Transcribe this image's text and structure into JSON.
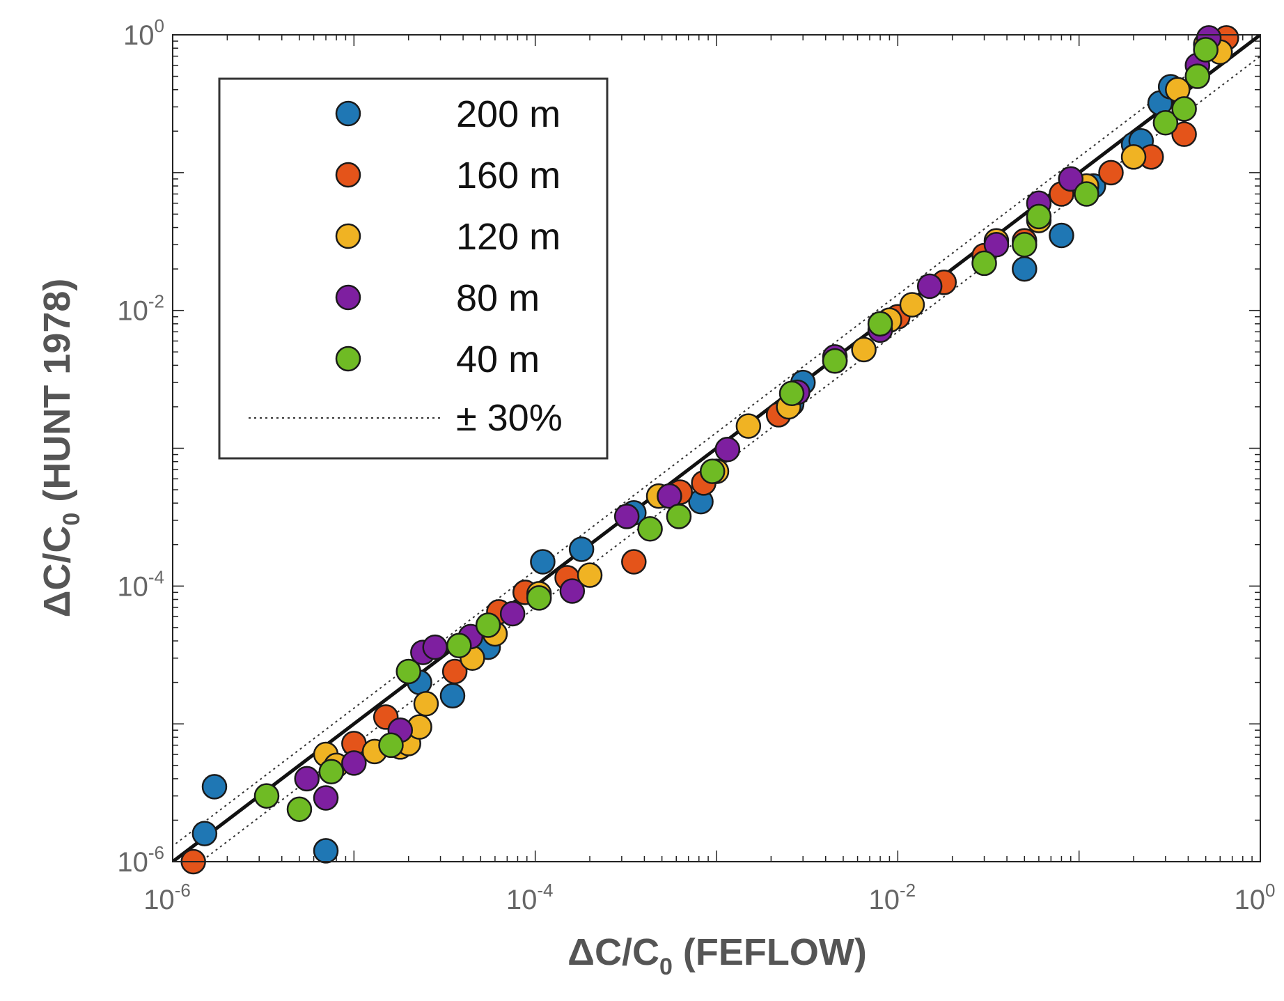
{
  "chart_data": {
    "type": "scatter",
    "x_scale": "log",
    "y_scale": "log",
    "xlim": [
      1e-06,
      1
    ],
    "ylim": [
      1e-06,
      1
    ],
    "xlabel": {
      "prefix": "ΔC/C",
      "sub": "0",
      "suffix": " (FEFLOW)"
    },
    "ylabel": {
      "prefix": "ΔC/C",
      "sub": "0",
      "suffix": " (HUNT 1978)"
    },
    "x_ticks": [
      {
        "value": 1e-06,
        "base": "10",
        "exp": "-6"
      },
      {
        "value": 0.0001,
        "base": "10",
        "exp": "-4"
      },
      {
        "value": 0.01,
        "base": "10",
        "exp": "-2"
      },
      {
        "value": 1,
        "base": "10",
        "exp": "0"
      }
    ],
    "y_ticks": [
      {
        "value": 1e-06,
        "base": "10",
        "exp": "-6"
      },
      {
        "value": 0.0001,
        "base": "10",
        "exp": "-4"
      },
      {
        "value": 0.01,
        "base": "10",
        "exp": "-2"
      },
      {
        "value": 1,
        "base": "10",
        "exp": "0"
      }
    ],
    "reference_lines": [
      {
        "name": "1:1 line",
        "factor": 1.0,
        "style": "solid",
        "color": "#111111"
      },
      {
        "name": "+30%",
        "factor": 1.3,
        "style": "dotted",
        "color": "#333333"
      },
      {
        "name": "-30%",
        "factor": 0.7,
        "style": "dotted",
        "color": "#333333"
      }
    ],
    "legend": {
      "position": "top-left",
      "entries": [
        {
          "label": "200 m",
          "color": "#1f77b4"
        },
        {
          "label": "160 m",
          "color": "#e4541a"
        },
        {
          "label": "120 m",
          "color": "#f0b323"
        },
        {
          "label": "80 m",
          "color": "#7e1fa0"
        },
        {
          "label": "40 m",
          "color": "#6fbb24"
        }
      ],
      "range_label": "± 30%"
    },
    "series": [
      {
        "name": "200 m",
        "color": "#1f77b4",
        "points": [
          [
            1.5e-06,
            1.6e-06
          ],
          [
            1.7e-06,
            3.5e-06
          ],
          [
            7e-06,
            1.2e-06
          ],
          [
            2.3e-05,
            2e-05
          ],
          [
            3.5e-05,
            1.6e-05
          ],
          [
            5.5e-05,
            3.6e-05
          ],
          [
            0.00011,
            0.00015
          ],
          [
            0.00018,
            0.000185
          ],
          [
            0.00035,
            0.00034
          ],
          [
            0.00082,
            0.00041
          ],
          [
            0.0026,
            0.0021
          ],
          [
            0.003,
            0.003
          ],
          [
            0.05,
            0.02
          ],
          [
            0.08,
            0.035
          ],
          [
            0.12,
            0.08
          ],
          [
            0.2,
            0.16
          ],
          [
            0.22,
            0.17
          ],
          [
            0.28,
            0.32
          ],
          [
            0.32,
            0.42
          ]
        ]
      },
      {
        "name": "160 m",
        "color": "#e4541a",
        "points": [
          [
            1.3e-06,
            1e-06
          ],
          [
            1e-05,
            7.2e-06
          ],
          [
            1.5e-05,
            1.12e-05
          ],
          [
            3.6e-05,
            2.4e-05
          ],
          [
            6.3e-05,
            6.5e-05
          ],
          [
            8.8e-05,
            9e-05
          ],
          [
            0.00015,
            0.000115
          ],
          [
            0.00035,
            0.00015
          ],
          [
            0.00063,
            0.00048
          ],
          [
            0.00085,
            0.00056
          ],
          [
            0.0022,
            0.00175
          ],
          [
            0.0045,
            0.0043
          ],
          [
            0.01,
            0.009
          ],
          [
            0.018,
            0.016
          ],
          [
            0.03,
            0.025
          ],
          [
            0.05,
            0.032
          ],
          [
            0.08,
            0.07
          ],
          [
            0.15,
            0.1
          ],
          [
            0.25,
            0.13
          ],
          [
            0.38,
            0.19
          ],
          [
            0.6,
            0.9
          ],
          [
            0.65,
            0.95
          ]
        ]
      },
      {
        "name": "120 m",
        "color": "#f0b323",
        "points": [
          [
            7e-06,
            6e-06
          ],
          [
            8e-06,
            5e-06
          ],
          [
            1.3e-05,
            6.3e-06
          ],
          [
            1.8e-05,
            6.8e-06
          ],
          [
            2e-05,
            7.2e-06
          ],
          [
            2.3e-05,
            9.5e-06
          ],
          [
            2.5e-05,
            1.4e-05
          ],
          [
            4.5e-05,
            3e-05
          ],
          [
            6e-05,
            4.5e-05
          ],
          [
            0.000105,
            8.8e-05
          ],
          [
            0.0002,
            0.00012
          ],
          [
            0.00048,
            0.00045
          ],
          [
            0.001,
            0.00068
          ],
          [
            0.0015,
            0.00145
          ],
          [
            0.0025,
            0.002
          ],
          [
            0.0065,
            0.0052
          ],
          [
            0.009,
            0.0085
          ],
          [
            0.012,
            0.011
          ],
          [
            0.035,
            0.032
          ],
          [
            0.06,
            0.045
          ],
          [
            0.11,
            0.08
          ],
          [
            0.2,
            0.13
          ],
          [
            0.35,
            0.4
          ],
          [
            0.5,
            0.85
          ],
          [
            0.6,
            0.75
          ]
        ]
      },
      {
        "name": "80 m",
        "color": "#7e1fa0",
        "points": [
          [
            5.5e-06,
            4e-06
          ],
          [
            7e-06,
            2.9e-06
          ],
          [
            1e-05,
            5.2e-06
          ],
          [
            1.8e-05,
            9e-06
          ],
          [
            2.4e-05,
            3.3e-05
          ],
          [
            2.8e-05,
            3.6e-05
          ],
          [
            4.4e-05,
            4.3e-05
          ],
          [
            7.5e-05,
            6.3e-05
          ],
          [
            0.00016,
            9.2e-05
          ],
          [
            0.00032,
            0.00032
          ],
          [
            0.00055,
            0.00045
          ],
          [
            0.00115,
            0.00098
          ],
          [
            0.0028,
            0.00255
          ],
          [
            0.0045,
            0.0046
          ],
          [
            0.008,
            0.0072
          ],
          [
            0.015,
            0.015
          ],
          [
            0.035,
            0.03
          ],
          [
            0.06,
            0.06
          ],
          [
            0.09,
            0.09
          ],
          [
            0.45,
            0.6
          ],
          [
            0.52,
            0.95
          ]
        ]
      },
      {
        "name": "40 m",
        "color": "#6fbb24",
        "points": [
          [
            3.3e-06,
            3e-06
          ],
          [
            5e-06,
            2.4e-06
          ],
          [
            7.5e-06,
            4.5e-06
          ],
          [
            1.6e-05,
            7e-06
          ],
          [
            2e-05,
            2.4e-05
          ],
          [
            3.8e-05,
            3.7e-05
          ],
          [
            5.5e-05,
            5.2e-05
          ],
          [
            0.000105,
            8.2e-05
          ],
          [
            0.00043,
            0.00026
          ],
          [
            0.00062,
            0.00032
          ],
          [
            0.00095,
            0.00068
          ],
          [
            0.0026,
            0.0025
          ],
          [
            0.0045,
            0.0043
          ],
          [
            0.008,
            0.008
          ],
          [
            0.03,
            0.022
          ],
          [
            0.05,
            0.03
          ],
          [
            0.06,
            0.048
          ],
          [
            0.11,
            0.07
          ],
          [
            0.3,
            0.23
          ],
          [
            0.38,
            0.29
          ],
          [
            0.45,
            0.5
          ],
          [
            0.5,
            0.78
          ]
        ]
      }
    ]
  }
}
